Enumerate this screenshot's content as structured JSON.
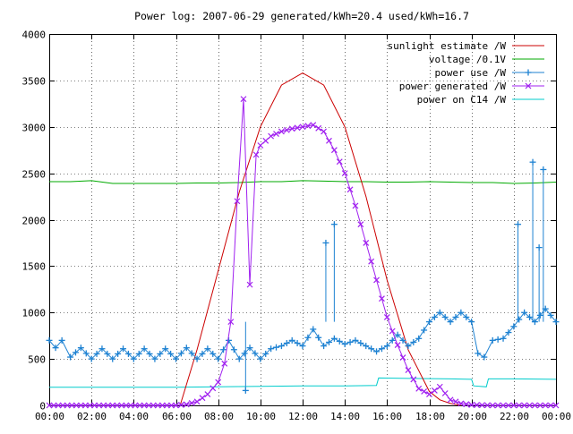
{
  "chart_data": {
    "type": "line",
    "title": "Power log: 2007-06-29 generated/kWh=20.4 used/kWh=16.7",
    "xlabel": "",
    "ylabel": "",
    "xlim": [
      0,
      24
    ],
    "ylim": [
      0,
      4000
    ],
    "x_ticks": [
      "00:00",
      "02:00",
      "04:00",
      "06:00",
      "08:00",
      "10:00",
      "12:00",
      "14:00",
      "16:00",
      "18:00",
      "20:00",
      "22:00",
      "00:00"
    ],
    "y_ticks": [
      "0",
      "500",
      "1000",
      "1500",
      "2000",
      "2500",
      "3000",
      "3500",
      "4000"
    ],
    "grid": true,
    "legend_position": "top-right",
    "series": [
      {
        "name": "sunlight estimate /W",
        "color": "#cc0000",
        "marker": "none",
        "x": [
          6.2,
          7.0,
          8.0,
          9.0,
          10.0,
          11.0,
          12.0,
          13.0,
          14.0,
          15.0,
          16.0,
          17.0,
          18.0,
          18.5,
          19.0,
          19.5
        ],
        "y": [
          0,
          600,
          1450,
          2300,
          3000,
          3450,
          3580,
          3450,
          3000,
          2250,
          1350,
          600,
          150,
          60,
          20,
          0
        ]
      },
      {
        "name": "voltage /0.1V",
        "color": "#00aa00",
        "marker": "none",
        "x": [
          0,
          1,
          2,
          3,
          4,
          5,
          6,
          7,
          8,
          9,
          10,
          11,
          12,
          13,
          14,
          15,
          16,
          17,
          18,
          19,
          20,
          21,
          22,
          23,
          24
        ],
        "y": [
          2410,
          2410,
          2420,
          2390,
          2390,
          2390,
          2390,
          2395,
          2395,
          2400,
          2410,
          2410,
          2420,
          2415,
          2410,
          2410,
          2405,
          2405,
          2410,
          2405,
          2400,
          2400,
          2390,
          2395,
          2405
        ]
      },
      {
        "name": "power use /W",
        "color": "#1e82d2",
        "marker": "plus",
        "x": [
          0,
          0.3,
          0.6,
          1,
          1.5,
          2,
          2.5,
          3,
          3.5,
          4,
          4.5,
          5,
          5.5,
          6,
          6.5,
          7,
          7.5,
          8,
          8.5,
          9,
          9.5,
          10,
          10.5,
          11,
          11.5,
          12,
          12.5,
          13,
          13.5,
          14,
          14.5,
          15,
          15.5,
          16,
          16.5,
          17,
          17.5,
          18,
          18.5,
          19,
          19.5,
          20,
          20.3,
          20.6,
          21,
          21.5,
          22,
          22.5,
          23,
          23.5,
          24
        ],
        "y": [
          700,
          620,
          700,
          520,
          620,
          500,
          610,
          500,
          610,
          500,
          610,
          500,
          610,
          500,
          620,
          500,
          610,
          500,
          700,
          500,
          620,
          500,
          610,
          640,
          700,
          640,
          820,
          640,
          720,
          660,
          700,
          640,
          580,
          640,
          760,
          640,
          720,
          900,
          1000,
          900,
          1000,
          900,
          560,
          520,
          700,
          720,
          850,
          1000,
          900,
          1040,
          900
        ],
        "spikes": [
          {
            "x": 9.3,
            "y": 160
          },
          {
            "x": 13.1,
            "y": 1750
          },
          {
            "x": 13.5,
            "y": 1950
          },
          {
            "x": 22.2,
            "y": 1950
          },
          {
            "x": 22.9,
            "y": 2620
          },
          {
            "x": 23.4,
            "y": 2540
          },
          {
            "x": 23.2,
            "y": 1700
          }
        ]
      },
      {
        "name": "power generated /W",
        "color": "#a020f0",
        "marker": "cross",
        "x": [
          0,
          6,
          6.5,
          7,
          7.5,
          8,
          8.3,
          8.6,
          8.9,
          9.2,
          9.5,
          9.8,
          10,
          10.5,
          11,
          11.5,
          12,
          12.5,
          13,
          13.5,
          14,
          14.5,
          15,
          15.5,
          16,
          16.5,
          17,
          17.5,
          18,
          18.5,
          19,
          19.5,
          20,
          21,
          22,
          23,
          24
        ],
        "y": [
          0,
          0,
          10,
          40,
          120,
          250,
          450,
          900,
          2200,
          3300,
          1300,
          2700,
          2800,
          2900,
          2950,
          2980,
          3000,
          3020,
          2950,
          2750,
          2500,
          2150,
          1750,
          1350,
          950,
          650,
          380,
          180,
          120,
          200,
          60,
          20,
          5,
          0,
          0,
          0,
          0
        ]
      },
      {
        "name": "power on C14 /W",
        "color": "#00cccc",
        "marker": "none",
        "x": [
          0,
          2,
          4,
          6,
          8,
          10,
          12,
          14,
          15.5,
          15.6,
          17,
          19,
          20,
          20.1,
          20.7,
          20.8,
          22,
          24
        ],
        "y": [
          195,
          195,
          195,
          195,
          200,
          205,
          210,
          210,
          215,
          295,
          290,
          285,
          280,
          210,
          200,
          285,
          285,
          280
        ]
      }
    ]
  }
}
